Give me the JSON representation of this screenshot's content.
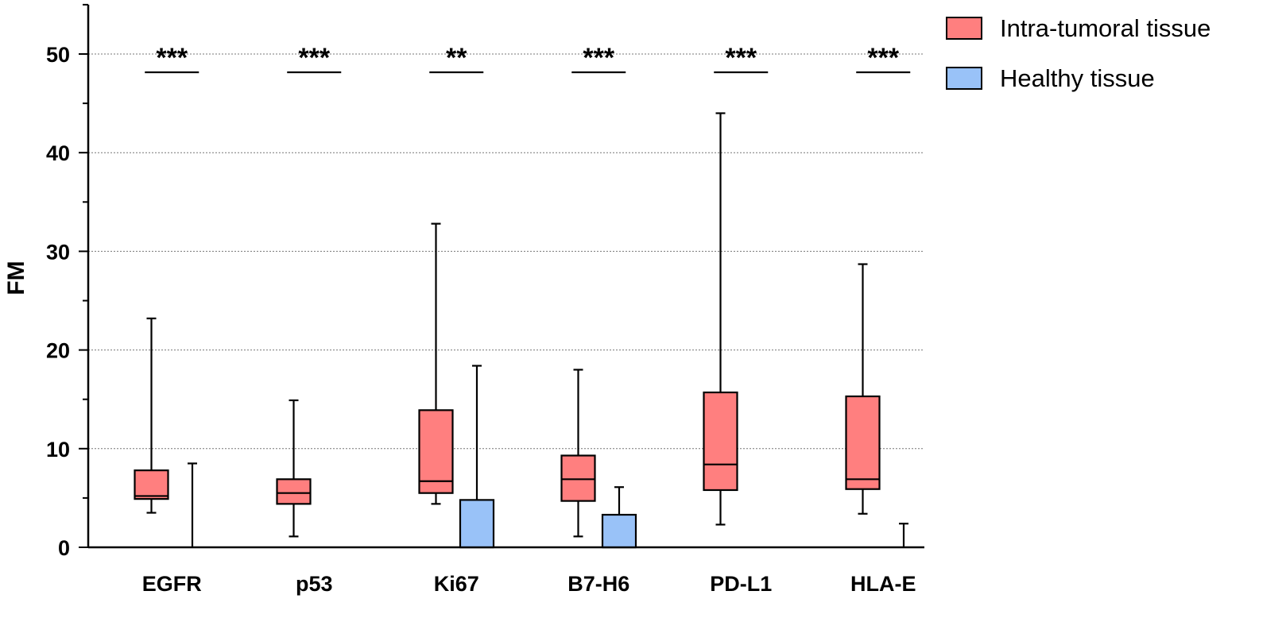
{
  "chart_data": {
    "type": "boxplot",
    "title": "",
    "xlabel": "",
    "ylabel": "FM",
    "ylim": [
      0,
      55
    ],
    "yticks": [
      0,
      10,
      20,
      30,
      40,
      50
    ],
    "grid": "horizontal dotted at 10, 20, 30, 40, 50",
    "categories": [
      "EGFR",
      "p53",
      "Ki67",
      "B7-H6",
      "PD-L1",
      "HLA-E"
    ],
    "significance": [
      "***",
      "***",
      "**",
      "***",
      "***",
      "***"
    ],
    "legend_position": "top-right",
    "series": [
      {
        "name": "Intra-tumoral tissue",
        "color": "#FF7F7F",
        "boxes": [
          {
            "min": 3.5,
            "q1": 4.9,
            "median": 5.2,
            "q3": 7.8,
            "max": 23.2
          },
          {
            "min": 1.1,
            "q1": 4.4,
            "median": 5.5,
            "q3": 6.9,
            "max": 14.9
          },
          {
            "min": 4.4,
            "q1": 5.5,
            "median": 6.7,
            "q3": 13.9,
            "max": 32.8
          },
          {
            "min": 1.1,
            "q1": 4.7,
            "median": 6.9,
            "q3": 9.3,
            "max": 18.0
          },
          {
            "min": 2.3,
            "q1": 5.8,
            "median": 8.4,
            "q3": 15.7,
            "max": 44.0
          },
          {
            "min": 3.4,
            "q1": 5.9,
            "median": 6.9,
            "q3": 15.3,
            "max": 28.7
          }
        ]
      },
      {
        "name": "Healthy tissue",
        "color": "#99C2F8",
        "boxes": [
          {
            "min": 0,
            "q1": 0,
            "median": 0,
            "q3": 0,
            "max": 8.5
          },
          {
            "min": 0,
            "q1": 0,
            "median": 0,
            "q3": 0,
            "max": 0
          },
          {
            "min": 0,
            "q1": 0,
            "median": 0,
            "q3": 4.8,
            "max": 18.4
          },
          {
            "min": 0,
            "q1": 0,
            "median": 0,
            "q3": 3.3,
            "max": 6.1
          },
          {
            "min": 0,
            "q1": 0,
            "median": 0,
            "q3": 0,
            "max": 0
          },
          {
            "min": 0,
            "q1": 0,
            "median": 0,
            "q3": 0,
            "max": 2.4
          }
        ]
      }
    ]
  }
}
